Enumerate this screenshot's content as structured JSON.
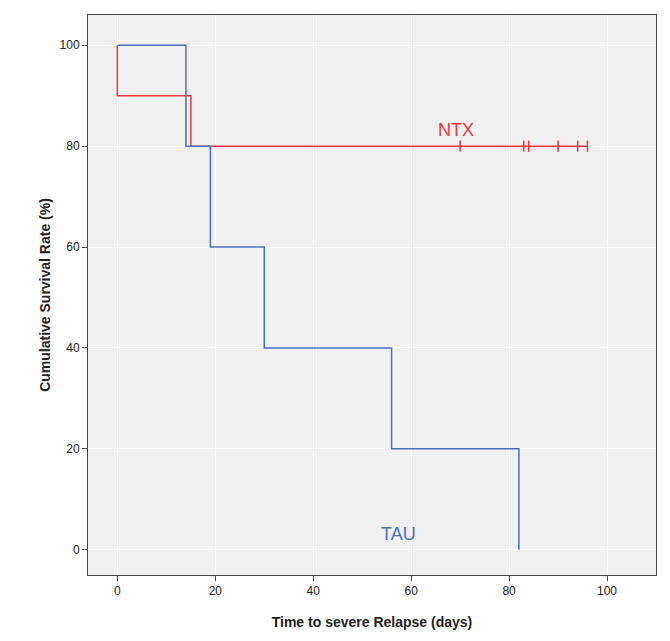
{
  "chart_data": {
    "type": "step",
    "x_label": "Time to severe Relapse (days)",
    "y_label": "Cumulative Survival Rate (%)",
    "xlim": [
      -6,
      110
    ],
    "ylim": [
      -5,
      106
    ],
    "xticks": [
      0,
      20,
      40,
      60,
      80,
      100
    ],
    "yticks": [
      0,
      20,
      40,
      60,
      80,
      100
    ],
    "grid": true,
    "series": [
      {
        "name": "NTX",
        "color": "#e8383d",
        "x": [
          0,
          0,
          15,
          96
        ],
        "values": [
          100,
          90,
          80,
          80
        ],
        "censored_x": [
          70,
          83,
          84,
          90,
          94,
          96
        ],
        "censored_values": [
          80,
          80,
          80,
          80,
          80,
          80
        ]
      },
      {
        "name": "TAU",
        "color": "#4a6fc0",
        "x": [
          0,
          14,
          19,
          30,
          56,
          82
        ],
        "values": [
          100,
          80,
          60,
          40,
          20,
          0
        ]
      }
    ]
  }
}
